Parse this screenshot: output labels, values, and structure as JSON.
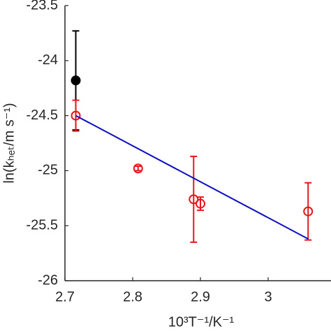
{
  "chart_data": {
    "type": "scatter",
    "x_label": "10³T⁻¹/K⁻¹",
    "y_label": "ln(kₕₑₜ/m s⁻¹)",
    "xlim": [
      2.7,
      3.1
    ],
    "xticks": [
      2.7,
      2.8,
      2.9,
      3
    ],
    "ylim": [
      -26,
      -23.5
    ],
    "yticks": [
      -26,
      -25.5,
      -25,
      -24.5,
      -24,
      -23.5
    ],
    "series": [
      {
        "color": "#000000",
        "marker": "filled",
        "x": [
          2.716
        ],
        "values": [
          -24.18
        ],
        "errors": [
          0.45
        ]
      },
      {
        "color": "#e8161b",
        "marker": "open",
        "x": [
          2.716,
          2.808,
          2.89,
          2.9,
          3.059
        ],
        "values": [
          -24.5,
          -24.98,
          -25.26,
          -25.3,
          -25.37
        ],
        "errors": [
          0.14,
          0.02,
          0.39,
          0.06,
          0.26
        ]
      },
      {
        "color": "#1010c0",
        "marker": "line",
        "x": [
          2.716,
          3.059
        ],
        "values": [
          -24.5,
          -25.62
        ]
      }
    ]
  }
}
